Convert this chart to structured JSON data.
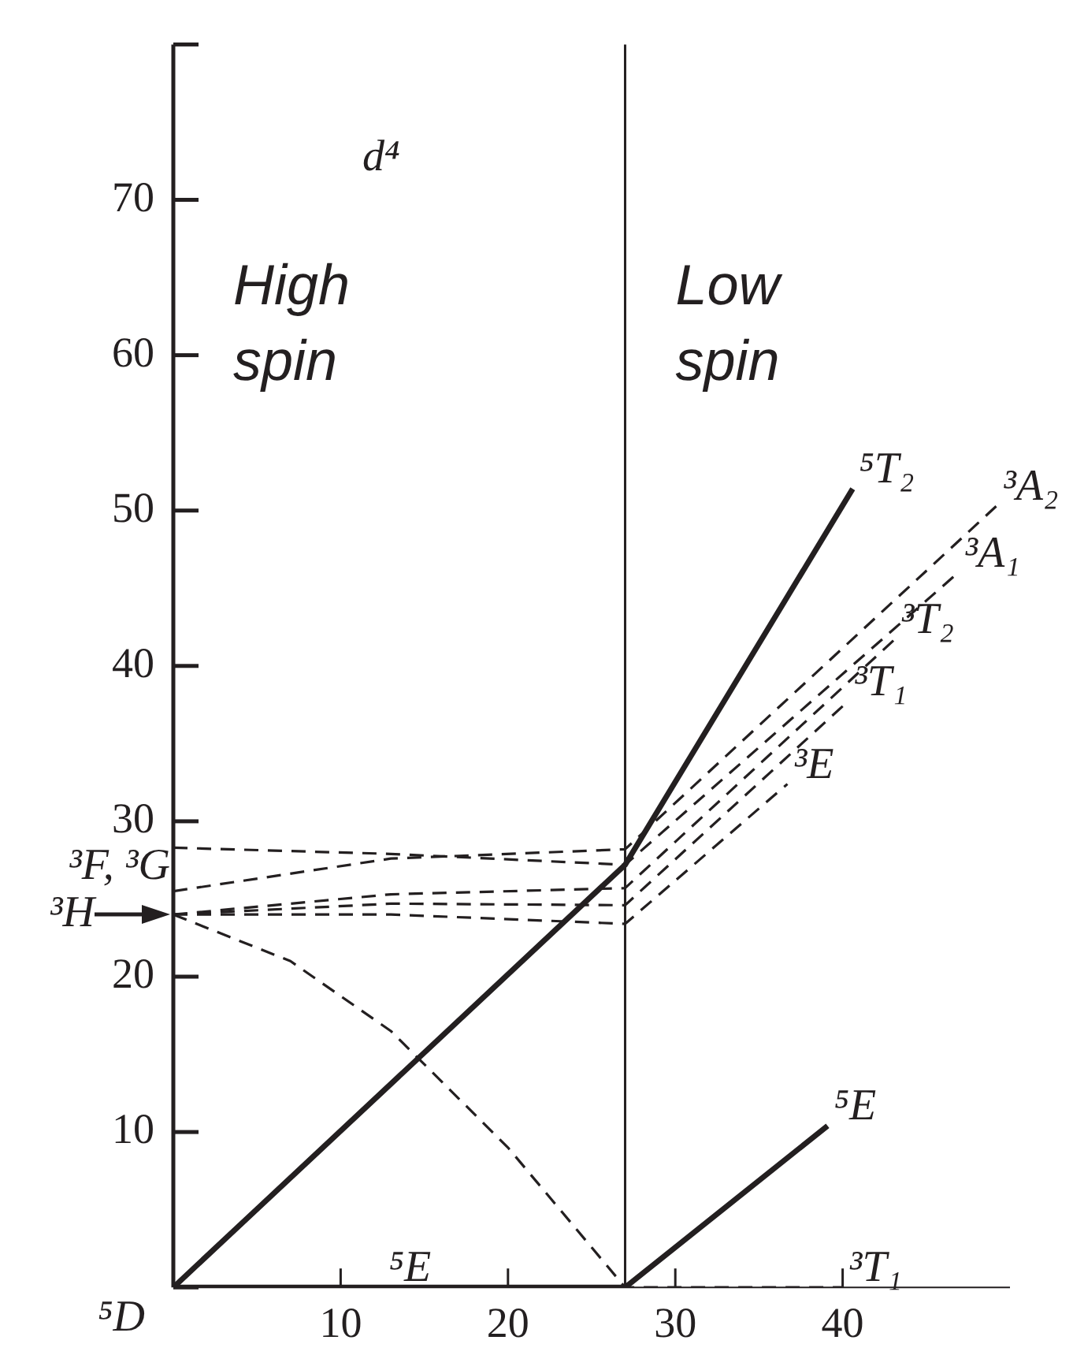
{
  "chart_data": {
    "type": "line",
    "title": "d⁴",
    "xlim": [
      0,
      50
    ],
    "xticks": [
      10,
      20,
      30,
      40
    ],
    "ylim": [
      0,
      80
    ],
    "yticks": [
      {
        "value": 0,
        "label": null
      },
      10,
      20,
      30,
      40,
      50,
      60,
      70,
      {
        "value": 80,
        "label": null
      }
    ],
    "grid": false,
    "legend": false,
    "marker": "none",
    "ref_lines": [
      {
        "axis": "x",
        "value": 27,
        "label": null,
        "color": "#231f20"
      }
    ],
    "series": [
      {
        "color": "#231f20",
        "line_style": "solid",
        "x": [
          0,
          27,
          40.6
        ],
        "values": [
          0,
          27.2,
          51.4
        ]
      },
      {
        "color": "#231f20",
        "line_style": "solid",
        "x": [
          0,
          27,
          39.1
        ],
        "values": [
          0,
          0,
          10.4
        ]
      },
      {
        "color": "#231f20",
        "line_style": "dashed",
        "x": [
          0,
          7,
          13,
          20,
          27,
          40
        ],
        "values": [
          24,
          21,
          16.5,
          9,
          0,
          0
        ]
      },
      {
        "color": "#231f20",
        "line_style": "dashed",
        "x": [
          0,
          13,
          27,
          49.2
        ],
        "values": [
          25.5,
          27.6,
          28.2,
          50.3
        ]
      },
      {
        "color": "#231f20",
        "line_style": "dashed",
        "x": [
          0,
          13,
          27,
          46.9
        ],
        "values": [
          28.3,
          27.9,
          27.2,
          46.0
        ]
      },
      {
        "color": "#231f20",
        "line_style": "dashed",
        "x": [
          0,
          13,
          27,
          43.1
        ],
        "values": [
          24,
          25.3,
          25.7,
          41.7
        ]
      },
      {
        "color": "#231f20",
        "line_style": "dashed",
        "x": [
          0,
          13,
          27,
          40.3
        ],
        "values": [
          24,
          24.7,
          24.6,
          37.7
        ]
      },
      {
        "color": "#231f20",
        "line_style": "dashed",
        "x": [
          0,
          13,
          27,
          36.7
        ],
        "values": [
          24,
          24.0,
          23.4,
          32.4
        ]
      }
    ],
    "annotations": [
      "High spin",
      "Low spin",
      {
        "text": "⁵T₂",
        "x": 40.6,
        "y": 51.4
      },
      {
        "text": "³A₂",
        "x": 49.2,
        "y": 50.3
      },
      {
        "text": "³A₁",
        "x": 46.9,
        "y": 46.0
      },
      {
        "text": "³T₂",
        "x": 43.1,
        "y": 41.7
      },
      {
        "text": "³T₁",
        "x": 40.3,
        "y": 37.7
      },
      {
        "text": "³E",
        "x": 36.7,
        "y": 32.4
      },
      {
        "text": "⁵E",
        "x": 39.1,
        "y": 10.4
      },
      {
        "text": "⁵E",
        "x": 12.5,
        "y": 0
      },
      {
        "text": "³T₁",
        "x": 40,
        "y": 0
      },
      {
        "text": "⁵D",
        "x": 0,
        "y": 0
      },
      "³F, ³G",
      {
        "text": "³H",
        "x": 0,
        "y": 24
      }
    ]
  }
}
